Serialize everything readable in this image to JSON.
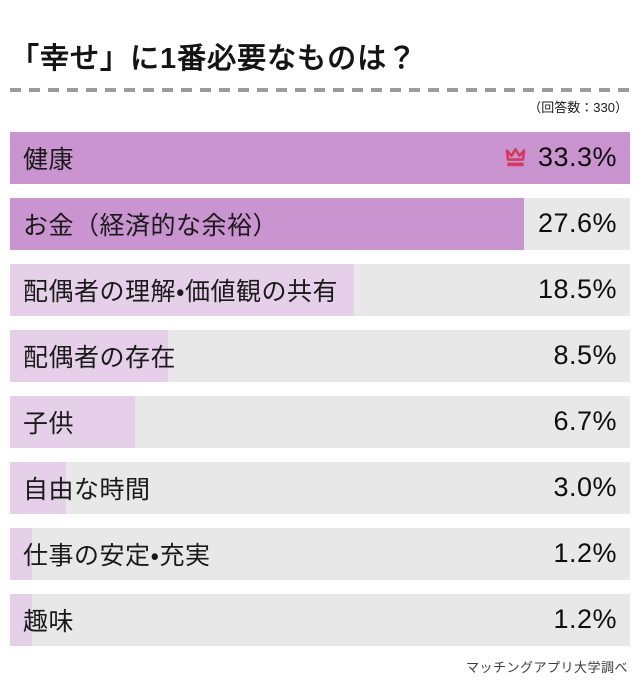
{
  "title": "「幸せ」に1番必要なものは？",
  "respondent_count_note": "（回答数：330）",
  "source_credit": "マッチングアプリ大学調べ",
  "colors": {
    "bar_fill_top": "#c994cf",
    "bar_fill_normal": "#e6d0e9",
    "bar_track": "#e9e8e8",
    "crown": "#d43a5f",
    "dashed_line": "#9b9b9b",
    "text": "#111111"
  },
  "chart_data": {
    "type": "bar",
    "orientation": "horizontal",
    "title": "「幸せ」に1番必要なものは？",
    "respondents": 330,
    "unit": "%",
    "max_value": 33.3,
    "grid": false,
    "legend": false,
    "categories": [
      "健康",
      "お金（経済的な余裕）",
      "配偶者の理解・価値観の共有",
      "配偶者の存在",
      "子供",
      "自由な時間",
      "仕事の安定・充実",
      "趣味"
    ],
    "values": [
      33.3,
      27.6,
      18.5,
      8.5,
      6.7,
      3.0,
      1.2,
      1.2
    ],
    "value_labels": [
      "33.3%",
      "27.6%",
      "18.5%",
      "8.5%",
      "6.7%",
      "3.0%",
      "1.2%",
      "1.2%"
    ],
    "highlighted_rows": 2,
    "top_item_marker": "crown-icon"
  }
}
